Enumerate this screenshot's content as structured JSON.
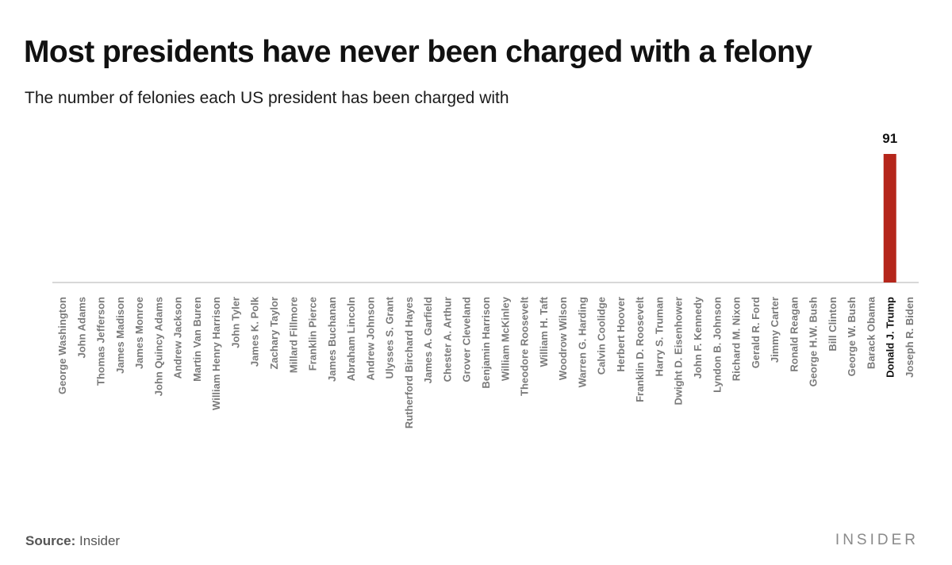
{
  "title": "Most presidents have never been charged with a felony",
  "subtitle": "The number of felonies each US president has been charged with",
  "source": {
    "label": "Source:",
    "value": "Insider"
  },
  "brand": "INSIDER",
  "colors": {
    "bar": "#b5261b",
    "highlight_label": "#111111",
    "label": "#7a7a7a",
    "baseline": "#cccccc"
  },
  "chart_data": {
    "type": "bar",
    "title": "Most presidents have never been charged with a felony",
    "subtitle": "The number of felonies each US president has been charged with",
    "categories": [
      "George Washington",
      "John Adams",
      "Thomas Jefferson",
      "James Madison",
      "James Monroe",
      "John Quincy Adams",
      "Andrew Jackson",
      "Martin Van Buren",
      "William Henry Harrison",
      "John Tyler",
      "James K. Polk",
      "Zachary Taylor",
      "Millard Fillmore",
      "Franklin Pierce",
      "James Buchanan",
      "Abraham Lincoln",
      "Andrew Johnson",
      "Ulysses S. Grant",
      "Rutherford Birchard Hayes",
      "James A. Garfield",
      "Chester A. Arthur",
      "Grover Cleveland",
      "Benjamin Harrison",
      "William McKinley",
      "Theodore Roosevelt",
      "William H. Taft",
      "Woodrow Wilson",
      "Warren G. Harding",
      "Calvin Coolidge",
      "Herbert Hoover",
      "Franklin D. Roosevelt",
      "Harry S. Truman",
      "Dwight D. Eisenhower",
      "John F. Kennedy",
      "Lyndon B. Johnson",
      "Richard M. Nixon",
      "Gerald R. Ford",
      "Jimmy Carter",
      "Ronald Reagan",
      "George H.W. Bush",
      "Bill Clinton",
      "George W. Bush",
      "Barack Obama",
      "Donald J. Trump",
      "Joseph R. Biden"
    ],
    "values": [
      0,
      0,
      0,
      0,
      0,
      0,
      0,
      0,
      0,
      0,
      0,
      0,
      0,
      0,
      0,
      0,
      0,
      0,
      0,
      0,
      0,
      0,
      0,
      0,
      0,
      0,
      0,
      0,
      0,
      0,
      0,
      0,
      0,
      0,
      0,
      0,
      0,
      0,
      0,
      0,
      0,
      0,
      0,
      91,
      0
    ],
    "data_labels": [
      "",
      "",
      "",
      "",
      "",
      "",
      "",
      "",
      "",
      "",
      "",
      "",
      "",
      "",
      "",
      "",
      "",
      "",
      "",
      "",
      "",
      "",
      "",
      "",
      "",
      "",
      "",
      "",
      "",
      "",
      "",
      "",
      "",
      "",
      "",
      "",
      "",
      "",
      "",
      "",
      "",
      "",
      "",
      "91",
      ""
    ],
    "highlight": "Donald J. Trump",
    "ylim": [
      0,
      91
    ],
    "grid": false,
    "legend": "none"
  }
}
